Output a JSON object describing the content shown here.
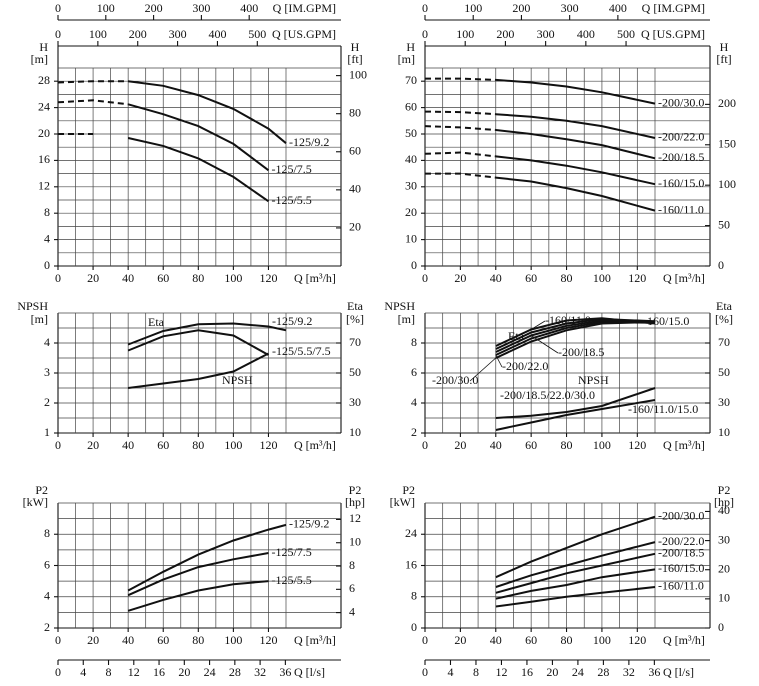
{
  "chart_data": [
    {
      "type": "line",
      "ylabel": "H",
      "yunit": "[m]",
      "y2label": "H",
      "y2unit": "[ft]",
      "xlabel": "Q [m³/h]",
      "xlim": [
        0,
        130
      ],
      "xticks": [
        0,
        20,
        40,
        60,
        80,
        100,
        120
      ],
      "xminor": [
        10,
        30,
        50,
        70,
        90,
        110,
        130
      ],
      "ylim": [
        0,
        30
      ],
      "yticks": [
        0,
        4,
        8,
        12,
        16,
        20,
        24,
        28
      ],
      "yminor": [
        2,
        6,
        10,
        14,
        18,
        22,
        26,
        30
      ],
      "y2lim": [
        0,
        104
      ],
      "y2ticks": [
        20,
        40,
        60,
        80,
        100
      ],
      "grid": true,
      "top_axes": [
        {
          "label": "Q [IM.GPM]",
          "lim": [
            0,
            477
          ],
          "ticks": [
            0,
            100,
            200,
            300,
            400
          ]
        },
        {
          "label": "Q [US.GPM]",
          "lim": [
            0,
            572
          ],
          "ticks": [
            0,
            100,
            200,
            300,
            400,
            500
          ]
        }
      ],
      "series": [
        {
          "name": "-125/9.2",
          "color": "#111",
          "dashed_to": 40,
          "x": [
            0,
            20,
            40,
            60,
            80,
            100,
            120,
            130
          ],
          "values": [
            27.8,
            28,
            28,
            27.3,
            25.9,
            23.8,
            20.8,
            18.6
          ]
        },
        {
          "name": "-125/7.5",
          "color": "#111",
          "dashed_to": 40,
          "x": [
            0,
            20,
            40,
            60,
            80,
            100,
            120
          ],
          "values": [
            24.8,
            25.1,
            24.5,
            23,
            21.2,
            18.5,
            14.5
          ]
        },
        {
          "name": "-125/5.5",
          "color": "#111",
          "dashed_to": 30,
          "x": [
            0,
            20,
            40,
            60,
            80,
            100,
            120
          ],
          "values": [
            20,
            20,
            19.4,
            18.2,
            16.3,
            13.5,
            9.8
          ]
        }
      ]
    },
    {
      "type": "line",
      "ylabel": "H",
      "yunit": "[m]",
      "y2label": "H",
      "y2unit": "[ft]",
      "xlabel": "Q [m³/h]",
      "xlim": [
        0,
        130
      ],
      "xticks": [
        0,
        20,
        40,
        60,
        80,
        100,
        120
      ],
      "xminor": [
        10,
        30,
        50,
        70,
        90,
        110,
        130
      ],
      "ylim": [
        0,
        75
      ],
      "yticks": [
        0,
        10,
        20,
        30,
        40,
        50,
        60,
        70
      ],
      "yminor": [
        5,
        15,
        25,
        35,
        45,
        55,
        65,
        75
      ],
      "y2lim": [
        0,
        245
      ],
      "y2ticks": [
        0,
        50,
        100,
        150,
        200
      ],
      "grid": true,
      "top_axes": [
        {
          "label": "Q [IM.GPM]",
          "lim": [
            0,
            477
          ],
          "ticks": [
            0,
            100,
            200,
            300,
            400
          ]
        },
        {
          "label": "Q [US.GPM]",
          "lim": [
            0,
            572
          ],
          "ticks": [
            0,
            100,
            200,
            300,
            400,
            500
          ]
        }
      ],
      "series": [
        {
          "name": "-200/30.0",
          "color": "#111",
          "dashed_to": 40,
          "x": [
            0,
            20,
            40,
            60,
            80,
            100,
            130
          ],
          "values": [
            71,
            71,
            70.5,
            69.5,
            68,
            65.8,
            61.5
          ]
        },
        {
          "name": "-200/22.0",
          "color": "#111",
          "dashed_to": 40,
          "x": [
            0,
            20,
            40,
            60,
            80,
            100,
            130
          ],
          "values": [
            58.5,
            58.3,
            57.5,
            56.5,
            55,
            53,
            48.5
          ]
        },
        {
          "name": "-200/18.5",
          "color": "#111",
          "dashed_to": 40,
          "x": [
            0,
            20,
            40,
            60,
            80,
            100,
            130
          ],
          "values": [
            53,
            52.5,
            51.5,
            50,
            48,
            45.8,
            40.8
          ]
        },
        {
          "name": "-160/15.0",
          "color": "#111",
          "dashed_to": 40,
          "x": [
            0,
            20,
            40,
            60,
            80,
            100,
            130
          ],
          "values": [
            42.5,
            43,
            41.5,
            40,
            38,
            35.5,
            31
          ]
        },
        {
          "name": "-160/11.0",
          "color": "#111",
          "dashed_to": 40,
          "x": [
            0,
            20,
            40,
            60,
            80,
            100,
            130
          ],
          "values": [
            35,
            35,
            33.5,
            32,
            29.5,
            26.5,
            21
          ]
        }
      ]
    },
    {
      "type": "line",
      "ylabel": "NPSH",
      "yunit": "[m]",
      "y2label": "Eta",
      "y2unit": "[%]",
      "xlabel": "Q [m³/h]",
      "xlim": [
        0,
        130
      ],
      "xticks": [
        0,
        20,
        40,
        60,
        80,
        100,
        120
      ],
      "xminor": [
        10,
        30,
        50,
        70,
        90,
        110,
        130
      ],
      "ylim": [
        1,
        5
      ],
      "yticks": [
        1,
        2,
        3,
        4
      ],
      "yminor": [
        1.5,
        2.5,
        3.5,
        4.5,
        5
      ],
      "y2lim": [
        10,
        90
      ],
      "y2ticks": [
        10,
        30,
        50,
        70
      ],
      "grid": true,
      "annotations": [
        "Eta"
      ],
      "series": [
        {
          "name": "-125/9.2",
          "color": "#111",
          "axis": "y2",
          "x": [
            40,
            60,
            80,
            100,
            120,
            130
          ],
          "values": [
            69,
            78,
            82.5,
            83,
            81,
            78.5
          ]
        },
        {
          "name": "-125/5.5/7.5",
          "color": "#111",
          "axis": "y2",
          "x": [
            40,
            60,
            80,
            100,
            120
          ],
          "values": [
            65,
            74.5,
            78.5,
            75,
            62
          ]
        },
        {
          "name": "NPSH",
          "color": "#111",
          "x": [
            40,
            60,
            80,
            100,
            120
          ],
          "values": [
            2.5,
            2.65,
            2.8,
            3.05,
            3.65
          ]
        }
      ]
    },
    {
      "type": "line",
      "ylabel": "NPSH",
      "yunit": "[m]",
      "y2label": "Eta",
      "y2unit": "[%]",
      "xlabel": "Q [m³/h]",
      "xlim": [
        0,
        130
      ],
      "xticks": [
        0,
        20,
        40,
        60,
        80,
        100,
        120
      ],
      "xminor": [
        10,
        30,
        50,
        70,
        90,
        110,
        130
      ],
      "ylim": [
        2,
        10
      ],
      "yticks": [
        2,
        4,
        6,
        8
      ],
      "yminor": [
        3,
        5,
        7,
        9,
        10
      ],
      "y2lim": [
        10,
        90
      ],
      "y2ticks": [
        10,
        30,
        50,
        70
      ],
      "grid": true,
      "annotations": [
        "Eta",
        "NPSH"
      ],
      "series": [
        {
          "name": "-160/11.0",
          "color": "#111",
          "axis": "y2",
          "x": [
            40,
            60,
            80,
            100,
            130
          ],
          "values": [
            68,
            79,
            85,
            86.5,
            83
          ]
        },
        {
          "name": "-160/15.0",
          "color": "#111",
          "axis": "y2",
          "x": [
            40,
            60,
            80,
            100,
            130
          ],
          "values": [
            66,
            77,
            83,
            86,
            84.5
          ]
        },
        {
          "name": "-200/18.5",
          "color": "#111",
          "axis": "y2",
          "x": [
            40,
            60,
            80,
            100,
            130
          ],
          "values": [
            64,
            75,
            81.5,
            85,
            84
          ]
        },
        {
          "name": "-200/22.0",
          "color": "#111",
          "axis": "y2",
          "x": [
            40,
            60,
            80,
            100,
            130
          ],
          "values": [
            62,
            73,
            80,
            84,
            83.5
          ]
        },
        {
          "name": "-200/30.0",
          "color": "#111",
          "axis": "y2",
          "x": [
            40,
            60,
            80,
            100,
            130
          ],
          "values": [
            60,
            71,
            78.5,
            83,
            84
          ]
        },
        {
          "name": "-200/18.5/22.0/30.0",
          "color": "#111",
          "x": [
            40,
            60,
            80,
            100,
            130
          ],
          "values": [
            3,
            3.15,
            3.4,
            3.8,
            5
          ]
        },
        {
          "name": "-160/11.0/15.0",
          "color": "#111",
          "x": [
            40,
            60,
            80,
            100,
            130
          ],
          "values": [
            2.2,
            2.7,
            3.2,
            3.6,
            4.2
          ]
        }
      ]
    },
    {
      "type": "line",
      "ylabel": "P2",
      "yunit": "[kW]",
      "y2label": "P2",
      "y2unit": "[hp]",
      "xlabel": "Q [m³/h]",
      "xlim": [
        0,
        130
      ],
      "xticks": [
        0,
        20,
        40,
        60,
        80,
        100,
        120
      ],
      "xminor": [
        10,
        30,
        50,
        70,
        90,
        110,
        130
      ],
      "ylim": [
        2,
        10
      ],
      "yticks": [
        2,
        4,
        6,
        8
      ],
      "yminor": [
        3,
        5,
        7,
        9,
        10
      ],
      "y2lim": [
        2.68,
        13.41
      ],
      "y2ticks": [
        4,
        6,
        8,
        10,
        12
      ],
      "grid": true,
      "bottom_axis": {
        "label": "Q [l/s]",
        "lim": [
          0,
          36.1
        ],
        "ticks": [
          0,
          4,
          8,
          12,
          16,
          20,
          24,
          28,
          32,
          36
        ]
      },
      "series": [
        {
          "name": "-125/9.2",
          "color": "#111",
          "x": [
            40,
            60,
            80,
            100,
            120,
            130
          ],
          "values": [
            4.4,
            5.6,
            6.7,
            7.6,
            8.3,
            8.6
          ]
        },
        {
          "name": "-125/7.5",
          "color": "#111",
          "x": [
            40,
            60,
            80,
            100,
            120
          ],
          "values": [
            4.1,
            5.1,
            5.9,
            6.4,
            6.8
          ]
        },
        {
          "name": "-125/5.5",
          "color": "#111",
          "x": [
            40,
            60,
            80,
            100,
            120
          ],
          "values": [
            3.1,
            3.8,
            4.4,
            4.8,
            5
          ]
        }
      ]
    },
    {
      "type": "line",
      "ylabel": "P2",
      "yunit": "[kW]",
      "y2label": "P2",
      "y2unit": "[hp]",
      "xlabel": "Q [m³/h]",
      "xlim": [
        0,
        130
      ],
      "xticks": [
        0,
        20,
        40,
        60,
        80,
        100,
        120
      ],
      "xminor": [
        10,
        30,
        50,
        70,
        90,
        110,
        130
      ],
      "ylim": [
        0,
        32
      ],
      "yticks": [
        0,
        8,
        16,
        24
      ],
      "yminor": [
        4,
        12,
        20,
        28,
        32
      ],
      "y2lim": [
        0,
        42.9
      ],
      "y2ticks": [
        0,
        10,
        20,
        30,
        40
      ],
      "grid": true,
      "bottom_axis": {
        "label": "Q [l/s]",
        "lim": [
          0,
          36.1
        ],
        "ticks": [
          0,
          4,
          8,
          12,
          16,
          20,
          24,
          28,
          32,
          36
        ]
      },
      "series": [
        {
          "name": "-200/30.0",
          "color": "#111",
          "x": [
            40,
            60,
            80,
            100,
            130
          ],
          "values": [
            13,
            17,
            20.5,
            24,
            28.5
          ]
        },
        {
          "name": "-200/22.0",
          "color": "#111",
          "x": [
            40,
            60,
            80,
            100,
            130
          ],
          "values": [
            10.5,
            13.5,
            16,
            18.5,
            22
          ]
        },
        {
          "name": "-200/18.5",
          "color": "#111",
          "x": [
            40,
            60,
            80,
            100,
            130
          ],
          "values": [
            9,
            11.5,
            14,
            16,
            19
          ]
        },
        {
          "name": "-160/15.0",
          "color": "#111",
          "x": [
            40,
            60,
            80,
            100,
            130
          ],
          "values": [
            7.5,
            9.5,
            11,
            13,
            15
          ]
        },
        {
          "name": "-160/11.0",
          "color": "#111",
          "x": [
            40,
            60,
            80,
            100,
            130
          ],
          "values": [
            5.5,
            6.7,
            8,
            9,
            10.5
          ]
        }
      ]
    }
  ]
}
